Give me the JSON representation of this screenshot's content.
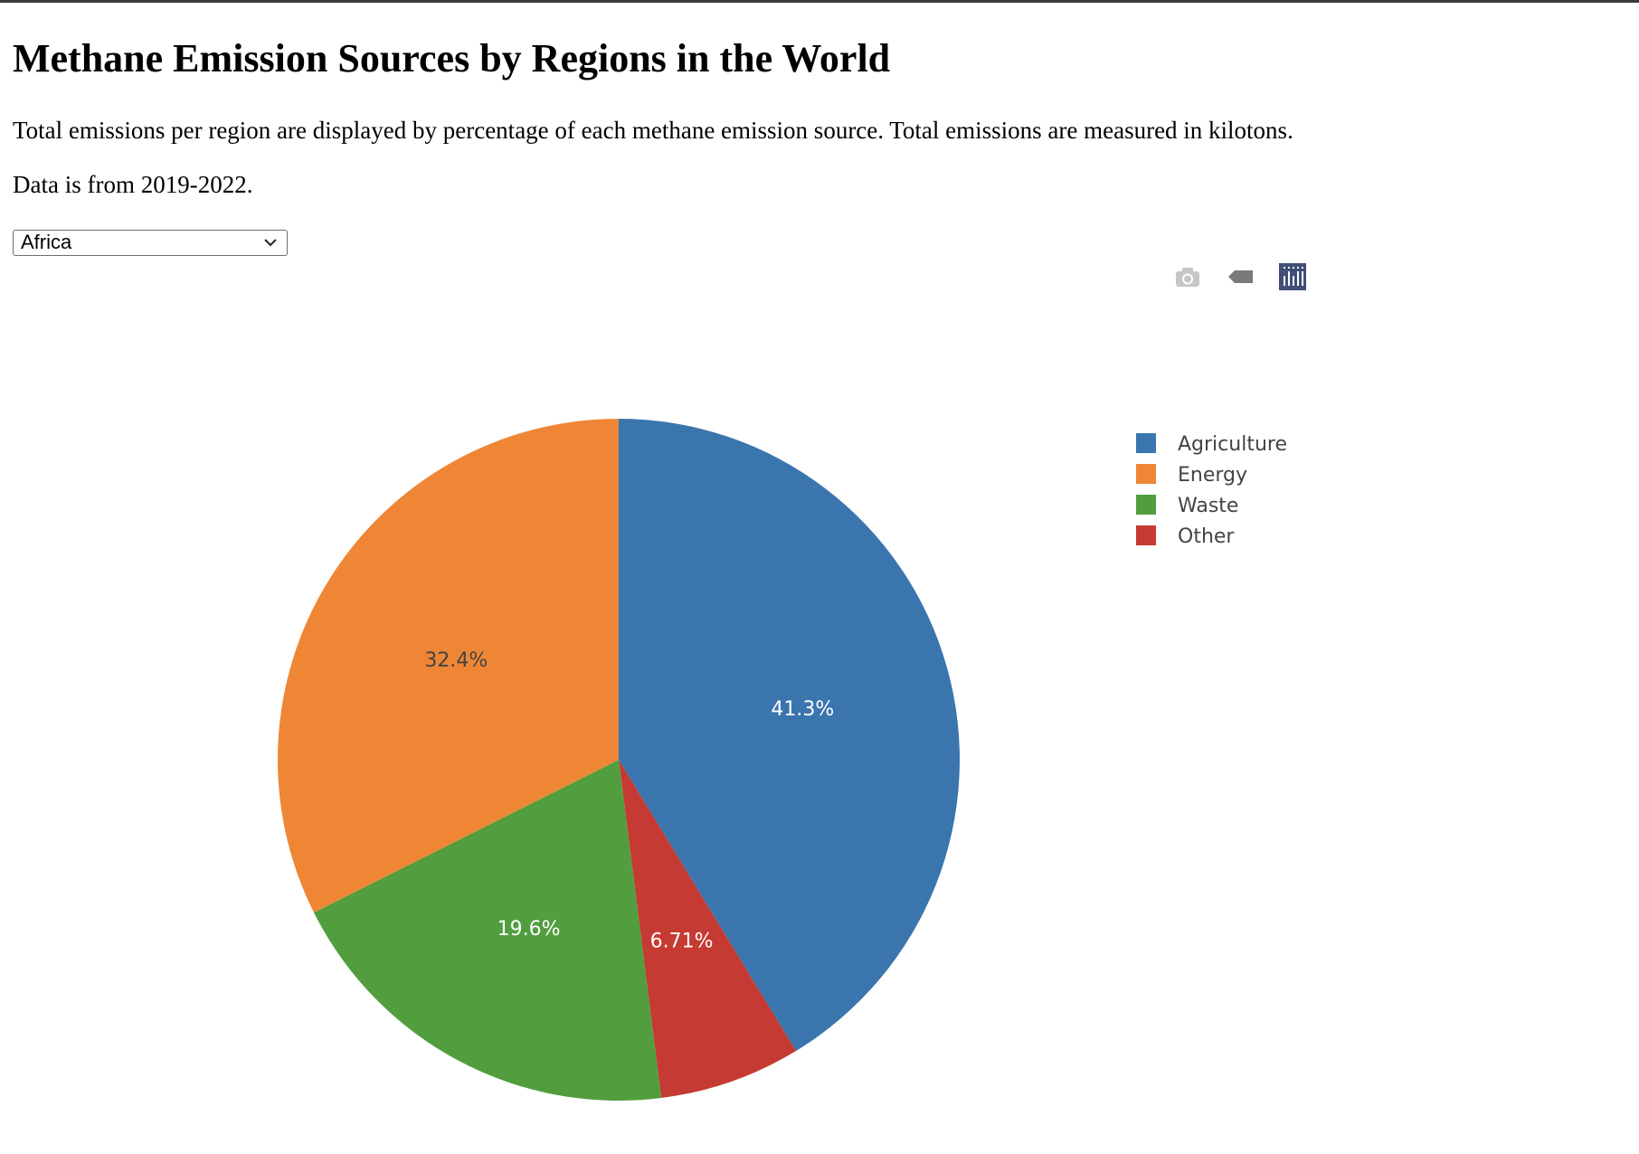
{
  "header": {
    "title": "Methane Emission Sources by Regions in the World",
    "description": "Total emissions per region are displayed by percentage of each methane emission source. Total emissions are measured in kilotons.",
    "data_note": "Data is from 2019-2022."
  },
  "region_select": {
    "selected": "Africa"
  },
  "modebar": {
    "icons": [
      "camera-icon",
      "hover-tag-icon",
      "plotly-logo-icon"
    ],
    "logo_color": "#3f4f75"
  },
  "chart_data": {
    "type": "pie",
    "labels": [
      "Agriculture",
      "Energy",
      "Waste",
      "Other"
    ],
    "values": [
      41.3,
      32.4,
      19.6,
      6.71
    ],
    "value_labels": [
      "41.3%",
      "32.4%",
      "19.6%",
      "6.71%"
    ],
    "colors": [
      "#3a75ae",
      "#ef8636",
      "#529e3e",
      "#c53a32"
    ],
    "label_colors": [
      "#ffffff",
      "#444444",
      "#ffffff",
      "#ffffff"
    ],
    "slice_order": [
      0,
      3,
      2,
      1
    ],
    "direction": "clockwise",
    "rotation_start": "12 o'clock",
    "legend_position": "right"
  }
}
